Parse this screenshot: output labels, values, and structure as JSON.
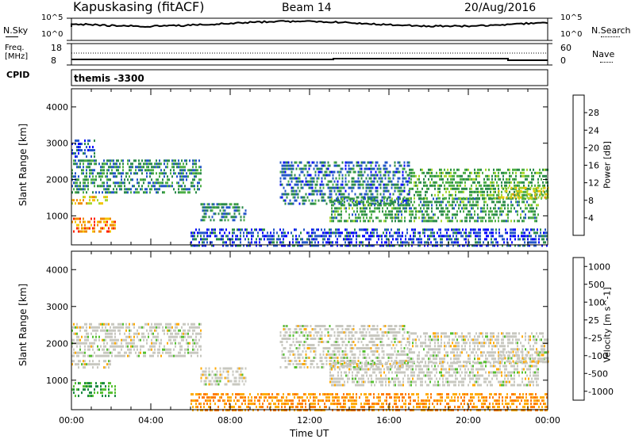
{
  "header": {
    "station": "Kapuskasing (fitACF)",
    "beam": "Beam 14",
    "date": "20/Aug/2016"
  },
  "noise_panel": {
    "left_label": "N.Sky",
    "right_label": "N.Search",
    "left_ticks": [
      "10^5",
      "10^0"
    ],
    "right_ticks": [
      "10^5",
      "10^0"
    ]
  },
  "freq_panel": {
    "left_label_1": "Freq.",
    "left_label_2": "[MHz]",
    "right_label": "Nave",
    "left_ticks": [
      "18",
      "8"
    ],
    "right_ticks": [
      "60",
      "0"
    ]
  },
  "cpid": {
    "label": "CPID",
    "value": "themis -3300"
  },
  "colors": {
    "power_scale": [
      "#0000ff",
      "#2255c8",
      "#2a8a4a",
      "#4cae45",
      "#a6d62d",
      "#f5c400",
      "#f08a00",
      "#ff2000"
    ],
    "velocity_scale": [
      "#1030c0",
      "#2060c8",
      "#1a8a40",
      "#55c030",
      "#c8c8c0",
      "#ffaa00",
      "#ff7a00",
      "#ff0000"
    ]
  },
  "chart_data": [
    {
      "type": "heatmap",
      "name": "power",
      "ylabel": "Slant Range [km]",
      "y_ticks": [
        "1000",
        "2000",
        "3000",
        "4000"
      ],
      "ylim": [
        200,
        4500
      ],
      "xlim": [
        0,
        24
      ],
      "colorbar": {
        "label": "Power [dB]",
        "ticks": [
          "4",
          "8",
          "12",
          "16",
          "20",
          "24",
          "28"
        ],
        "range": [
          0,
          32
        ]
      },
      "bands": [
        {
          "t0": 0.0,
          "t1": 2.2,
          "r0": 600,
          "r1": 950,
          "v": 26
        },
        {
          "t0": 0.0,
          "t1": 2.0,
          "r0": 1350,
          "r1": 1550,
          "v": 22
        },
        {
          "t0": 0.0,
          "t1": 6.5,
          "r0": 1650,
          "r1": 2550,
          "v": 10
        },
        {
          "t0": 0.0,
          "t1": 1.2,
          "r0": 2600,
          "r1": 3100,
          "v": 6
        },
        {
          "t0": 6.5,
          "t1": 8.8,
          "r0": 900,
          "r1": 1350,
          "v": 9
        },
        {
          "t0": 6.0,
          "t1": 24.0,
          "r0": 200,
          "r1": 650,
          "v": 5
        },
        {
          "t0": 10.5,
          "t1": 17.0,
          "r0": 1300,
          "r1": 2500,
          "v": 8
        },
        {
          "t0": 13.0,
          "t1": 23.5,
          "r0": 850,
          "r1": 1500,
          "v": 12
        },
        {
          "t0": 17.0,
          "t1": 24.0,
          "r0": 1500,
          "r1": 2300,
          "v": 13
        },
        {
          "t0": 21.5,
          "t1": 24.0,
          "r0": 1500,
          "r1": 1800,
          "v": 20
        }
      ]
    },
    {
      "type": "heatmap",
      "name": "velocity",
      "ylabel": "Slant Range [km]",
      "xlabel": "Time UT",
      "y_ticks": [
        "1000",
        "2000",
        "3000",
        "4000"
      ],
      "x_ticks": [
        "00:00",
        "04:00",
        "08:00",
        "12:00",
        "16:00",
        "20:00",
        "00:00"
      ],
      "ylim": [
        200,
        4500
      ],
      "xlim": [
        0,
        24
      ],
      "colorbar": {
        "label": "Velocity [m s^-1]",
        "ticks": [
          "1000",
          "500",
          "100",
          "25",
          "-25",
          "-100",
          "-500",
          "-1000"
        ]
      },
      "bands": [
        {
          "t0": 0.0,
          "t1": 2.2,
          "r0": 600,
          "r1": 950,
          "v": 100
        },
        {
          "t0": 0.0,
          "t1": 2.0,
          "r0": 1350,
          "r1": 1550,
          "v": 0
        },
        {
          "t0": 0.0,
          "t1": 6.5,
          "r0": 1650,
          "r1": 2550,
          "v": 0
        },
        {
          "t0": 6.5,
          "t1": 8.8,
          "r0": 900,
          "r1": 1350,
          "v": 0
        },
        {
          "t0": 6.0,
          "t1": 24.0,
          "r0": 200,
          "r1": 650,
          "v": -100
        },
        {
          "t0": 10.5,
          "t1": 17.0,
          "r0": 1300,
          "r1": 2500,
          "v": 0
        },
        {
          "t0": 13.0,
          "t1": 23.5,
          "r0": 850,
          "r1": 1500,
          "v": 0
        },
        {
          "t0": 17.0,
          "t1": 24.0,
          "r0": 1500,
          "r1": 2300,
          "v": 0
        },
        {
          "t0": 21.5,
          "t1": 24.0,
          "r0": 1500,
          "r1": 1800,
          "v": 0
        }
      ]
    }
  ]
}
